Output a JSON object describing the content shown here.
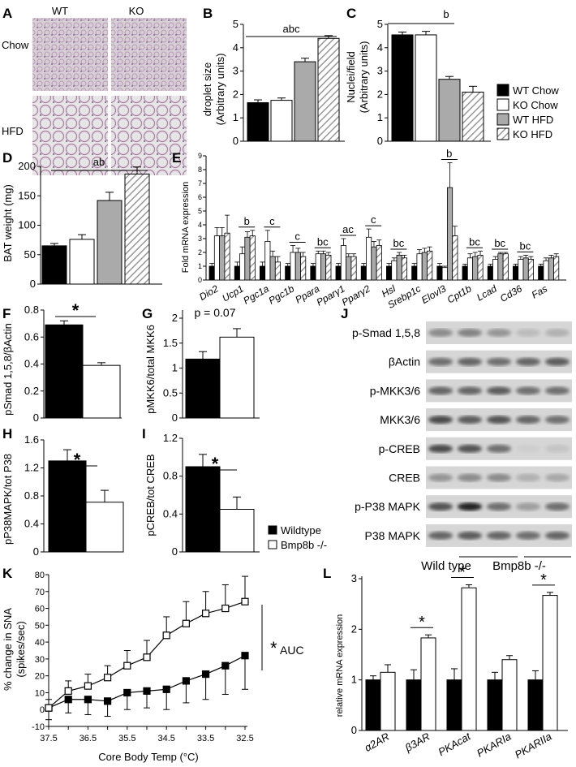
{
  "panelA": {
    "letter": "A",
    "cols": [
      "WT",
      "KO"
    ],
    "rows": [
      "Chow",
      "HFD"
    ]
  },
  "panelB": {
    "letter": "B",
    "ylabel_1": "droplet size",
    "ylabel_2": "(Arbitrary units)",
    "yticks": [
      "0",
      "1",
      "2",
      "3",
      "4",
      "5"
    ],
    "sig": "abc"
  },
  "panelC": {
    "letter": "C",
    "ylabel_1": "Nuclei/field",
    "ylabel_2": "(Arbitrary units)",
    "yticks": [
      "0",
      "1",
      "2",
      "3",
      "4",
      "5"
    ],
    "sig": "b"
  },
  "legend1": [
    "WT Chow",
    "KO Chow",
    "WT HFD",
    "KO HFD"
  ],
  "panelD": {
    "letter": "D",
    "ylabel": "BAT weight (mg)",
    "yticks": [
      "0",
      "50",
      "100",
      "150",
      "200"
    ],
    "sig": "ab"
  },
  "panelE": {
    "letter": "E",
    "ylabel": "Fold mRNA expression",
    "yticks": [
      "0",
      "1",
      "2",
      "3",
      "4",
      "5",
      "6",
      "7",
      "8",
      "9"
    ],
    "genes": [
      "Dio2",
      "Ucp1",
      "Pgc1a",
      "Pgc1b",
      "Ppara",
      "Pparγ1",
      "Pparγ2",
      "Hsl",
      "Srebp1c",
      "Elovl3",
      "Cpt1b",
      "Lcad",
      "Cd36",
      "Fas"
    ],
    "sigs": [
      "",
      "b",
      "c",
      "c",
      "bc",
      "ac",
      "c",
      "bc",
      "",
      "b",
      "bc",
      "bc",
      "bc",
      ""
    ]
  },
  "panelF": {
    "letter": "F",
    "ylabel": "pSmad 1,5,8/βActin",
    "yticks": [
      "0",
      "0.2",
      "0.4",
      "0.6",
      "0.8"
    ],
    "sig": "*"
  },
  "panelG": {
    "letter": "G",
    "ylabel": "pMKK6/total MKK6",
    "yticks": [
      "0",
      "0.5",
      "1",
      "1.5",
      "2"
    ],
    "note": "p = 0.07"
  },
  "panelH": {
    "letter": "H",
    "ylabel": "pP38MAPK/tot P38",
    "yticks": [
      "0",
      "0.4",
      "0.8",
      "1.2",
      "1.6"
    ],
    "sig": "*"
  },
  "panelI": {
    "letter": "I",
    "ylabel": "pCREB/tot CREB",
    "yticks": [
      "0",
      "0.4",
      "0.8",
      "1.2"
    ],
    "sig": "*"
  },
  "legend2": [
    "Wildtype",
    "Bmp8b -/-"
  ],
  "panelJ": {
    "letter": "J",
    "bands": [
      "p-Smad 1,5,8",
      "βActin",
      "p-MKK3/6",
      "MKK3/6",
      "p-CREB",
      "CREB",
      "p-P38 MAPK",
      "P38 MAPK"
    ],
    "groups": [
      "Wild type",
      "Bmp8b -/-"
    ]
  },
  "panelK": {
    "letter": "K",
    "ylabel_1": "% change in SNA",
    "ylabel_2": "(spikes/sec)",
    "xlabel": "Core Body Temp (°C)",
    "yticks": [
      "-10",
      "0",
      "10",
      "20",
      "30",
      "40",
      "50",
      "60",
      "70",
      "80"
    ],
    "xticks": [
      "37.5",
      "37",
      "36.5",
      "36",
      "35.5",
      "35",
      "34.5",
      "34",
      "33.5",
      "33",
      "32.5"
    ],
    "sig": "*",
    "sig_sub": "AUC"
  },
  "panelL": {
    "letter": "L",
    "ylabel": "relative mRNA expression",
    "yticks": [
      "0",
      "1",
      "2",
      "3"
    ],
    "genes": [
      "α2AR",
      "β3AR",
      "PKAcat",
      "PKARIa",
      "PKARIIa"
    ],
    "sig": "*"
  },
  "chart_data": [
    {
      "type": "bar",
      "panel": "B",
      "categories": [
        "WT Chow",
        "KO Chow",
        "WT HFD",
        "KO HFD"
      ],
      "values": [
        1.65,
        1.75,
        3.4,
        4.4
      ],
      "errors": [
        0.12,
        0.1,
        0.15,
        0.12
      ],
      "ylim": [
        0,
        5
      ]
    },
    {
      "type": "bar",
      "panel": "C",
      "categories": [
        "WT Chow",
        "KO Chow",
        "WT HFD",
        "KO HFD"
      ],
      "values": [
        4.55,
        4.55,
        2.65,
        2.1
      ],
      "errors": [
        0.12,
        0.15,
        0.12,
        0.25
      ],
      "ylim": [
        0,
        5
      ]
    },
    {
      "type": "bar",
      "panel": "D",
      "categories": [
        "WT Chow",
        "KO Chow",
        "WT HFD",
        "KO HFD"
      ],
      "values": [
        65,
        76,
        142,
        187
      ],
      "errors": [
        4,
        8,
        14,
        12
      ],
      "ylim": [
        0,
        200
      ]
    },
    {
      "type": "bar",
      "panel": "E",
      "categories": [
        "Dio2",
        "Ucp1",
        "Pgc1a",
        "Pgc1b",
        "Ppara",
        "Pparγ1",
        "Pparγ2",
        "Hsl",
        "Srebp1c",
        "Elovl3",
        "Cpt1b",
        "Lcad",
        "Cd36",
        "Fas"
      ],
      "series": [
        {
          "name": "WT Chow",
          "values": [
            1,
            1,
            1,
            1,
            1,
            1,
            1,
            1,
            1,
            1,
            1,
            1,
            1,
            1
          ],
          "errors": [
            0.2,
            0.3,
            0.3,
            0.2,
            0.2,
            0.2,
            0.2,
            0.2,
            0.2,
            0.2,
            0.15,
            0.15,
            0.15,
            0.15
          ]
        },
        {
          "name": "KO Chow",
          "values": [
            3.2,
            1.9,
            2.8,
            2.0,
            1.9,
            2.5,
            3.1,
            1.4,
            1.9,
            0.9,
            1.6,
            1.5,
            1.5,
            1.4
          ],
          "errors": [
            0.6,
            0.5,
            0.8,
            0.5,
            0.2,
            0.5,
            0.6,
            0.2,
            0.3,
            0.1,
            0.3,
            0.2,
            0.2,
            0.2
          ]
        },
        {
          "name": "WT HFD",
          "values": [
            3.2,
            3.1,
            1.7,
            2.0,
            1.9,
            1.7,
            2.4,
            1.8,
            2.0,
            6.7,
            1.7,
            1.9,
            1.6,
            1.6
          ],
          "errors": [
            0.6,
            0.4,
            0.4,
            0.3,
            0.2,
            0.2,
            0.4,
            0.2,
            0.3,
            1.8,
            0.3,
            0.1,
            0.2,
            0.2
          ]
        },
        {
          "name": "KO HFD",
          "values": [
            3.4,
            3.2,
            1.3,
            1.7,
            1.8,
            1.7,
            2.5,
            1.6,
            2.1,
            3.2,
            1.8,
            1.9,
            1.5,
            1.7
          ],
          "errors": [
            1.3,
            0.4,
            0.4,
            0.3,
            0.2,
            0.2,
            0.4,
            0.2,
            0.3,
            0.7,
            0.3,
            0.1,
            0.2,
            0.2
          ]
        }
      ],
      "ylim": [
        0,
        9
      ]
    },
    {
      "type": "bar",
      "panel": "F",
      "categories": [
        "Wildtype",
        "Bmp8b -/-"
      ],
      "values": [
        0.69,
        0.39
      ],
      "errors": [
        0.03,
        0.02
      ],
      "ylim": [
        0,
        0.8
      ]
    },
    {
      "type": "bar",
      "panel": "G",
      "categories": [
        "Wildtype",
        "Bmp8b -/-"
      ],
      "values": [
        1.18,
        1.62
      ],
      "errors": [
        0.15,
        0.17
      ],
      "ylim": [
        0,
        2
      ]
    },
    {
      "type": "bar",
      "panel": "H",
      "categories": [
        "Wildtype",
        "Bmp8b -/-"
      ],
      "values": [
        1.3,
        0.71
      ],
      "errors": [
        0.16,
        0.17
      ],
      "ylim": [
        0,
        1.6
      ]
    },
    {
      "type": "bar",
      "panel": "I",
      "categories": [
        "Wildtype",
        "Bmp8b -/-"
      ],
      "values": [
        0.9,
        0.45
      ],
      "errors": [
        0.13,
        0.13
      ],
      "ylim": [
        0,
        1.2
      ]
    },
    {
      "type": "line",
      "panel": "K",
      "x": [
        37.5,
        37,
        36.5,
        36,
        35.5,
        35,
        34.5,
        34,
        33.5,
        33,
        32.5
      ],
      "series": [
        {
          "name": "Wildtype",
          "y": [
            1,
            6,
            6,
            5,
            10,
            11,
            12,
            17,
            21,
            26,
            32
          ],
          "errors": [
            7,
            8,
            9,
            9,
            10,
            10,
            12,
            13,
            15,
            17,
            20
          ]
        },
        {
          "name": "Bmp8b -/-",
          "y": [
            1,
            11,
            14,
            19,
            26,
            31,
            44,
            51,
            57,
            60,
            64
          ],
          "errors": [
            5,
            6,
            7,
            7,
            9,
            10,
            11,
            13,
            13,
            14,
            15
          ]
        }
      ],
      "xlim": [
        37.5,
        32.5
      ],
      "ylim": [
        -10,
        80
      ]
    },
    {
      "type": "bar",
      "panel": "L",
      "categories": [
        "α2AR",
        "β3AR",
        "PKAcat",
        "PKARIa",
        "PKARIIa"
      ],
      "series": [
        {
          "name": "Wildtype",
          "values": [
            1,
            1,
            1,
            1,
            1
          ],
          "errors": [
            0.08,
            0.2,
            0.22,
            0.15,
            0.18
          ]
        },
        {
          "name": "Bmp8b -/-",
          "values": [
            1.15,
            1.83,
            2.82,
            1.4,
            2.67
          ],
          "errors": [
            0.15,
            0.06,
            0.06,
            0.08,
            0.06
          ]
        }
      ],
      "ylim": [
        0,
        3
      ]
    }
  ]
}
